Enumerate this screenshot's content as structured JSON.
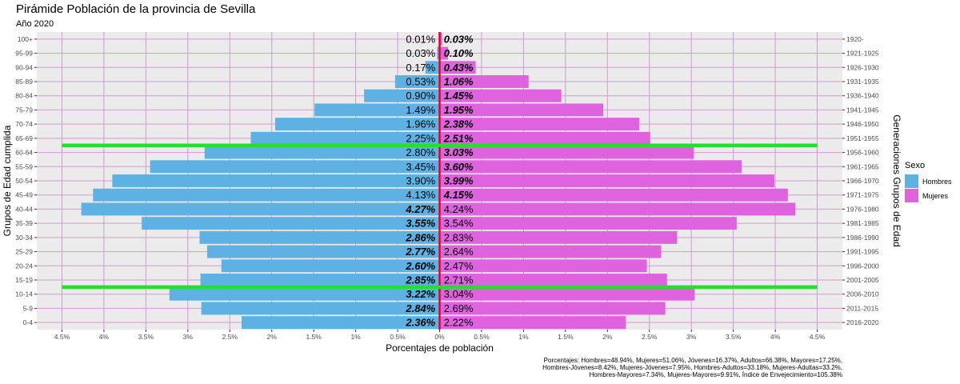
{
  "chart_data": {
    "type": "bar",
    "orientation": "horizontal",
    "title": "Pirámide Población de la provincia de Sevilla",
    "subtitle": "Año 2020",
    "xlabel": "Porcentajes de población",
    "ylabel": "Grupos de Edad cumplida",
    "ylabel_right": "Generaciones Grupos de Edad",
    "xlim": [
      -4.8,
      4.8
    ],
    "x_ticks": [
      -4.5,
      -4,
      -3.5,
      -3,
      -2.5,
      -2,
      -1.5,
      -1,
      -0.5,
      0,
      0.5,
      1,
      1.5,
      2,
      2.5,
      3,
      3.5,
      4,
      4.5
    ],
    "x_tick_labels": [
      "4.5%",
      "4%",
      "3.5%",
      "3%",
      "2.5%",
      "2%",
      "1.5%",
      "1%",
      "0.5%",
      "0%",
      "0.5%",
      "1%",
      "1.5%",
      "2%",
      "2.5%",
      "3%",
      "3.5%",
      "4%",
      "4.5%"
    ],
    "categories": [
      "0-4",
      "5-9",
      "10-14",
      "15-19",
      "20-24",
      "25-29",
      "30-34",
      "35-39",
      "40-44",
      "45-49",
      "50-54",
      "55-59",
      "60-64",
      "65-69",
      "70-74",
      "75-79",
      "80-84",
      "85-89",
      "90-94",
      "95-99",
      "100+"
    ],
    "generations": [
      "2016-2020",
      "2011-2015",
      "2006-2010",
      "2001-2005",
      "1996-2000",
      "1991-1995",
      "1986-1990",
      "1981-1985",
      "1976-1980",
      "1971-1975",
      "1966-1970",
      "1961-1965",
      "1956-1960",
      "1951-1955",
      "1946-1950",
      "1941-1945",
      "1936-1940",
      "1931-1935",
      "1926-1930",
      "1921-1925",
      "1920-"
    ],
    "series": [
      {
        "name": "Hombres",
        "color": "#5DB2E3",
        "values": [
          2.36,
          2.84,
          3.22,
          2.85,
          2.6,
          2.77,
          2.86,
          3.55,
          4.27,
          4.13,
          3.9,
          3.45,
          2.8,
          2.25,
          1.96,
          1.49,
          0.9,
          0.53,
          0.17,
          0.03,
          0.01
        ],
        "labels": [
          "2.36%",
          "2.84%",
          "3.22%",
          "2.85%",
          "2.60%",
          "2.77%",
          "2.86%",
          "3.55%",
          "4.27%",
          "4.13%",
          "3.90%",
          "3.45%",
          "2.80%",
          "2.25%",
          "1.96%",
          "1.49%",
          "0.90%",
          "0.53%",
          "0.17%",
          "0.03%",
          "0.01%"
        ],
        "bold": [
          true,
          true,
          true,
          true,
          true,
          true,
          true,
          true,
          true,
          false,
          false,
          false,
          false,
          false,
          false,
          false,
          false,
          false,
          false,
          false,
          false
        ]
      },
      {
        "name": "Mujeres",
        "color": "#DF62DE",
        "values": [
          2.22,
          2.69,
          3.04,
          2.71,
          2.47,
          2.64,
          2.83,
          3.54,
          4.24,
          4.15,
          3.99,
          3.6,
          3.03,
          2.51,
          2.38,
          1.95,
          1.45,
          1.06,
          0.43,
          0.1,
          0.03
        ],
        "labels": [
          "2.22%",
          "2.69%",
          "3.04%",
          "2.71%",
          "2.47%",
          "2.64%",
          "2.83%",
          "3.54%",
          "4.24%",
          "4.15%",
          "3.99%",
          "3.60%",
          "3.03%",
          "2.51%",
          "2.38%",
          "1.95%",
          "1.45%",
          "1.06%",
          "0.43%",
          "0.10%",
          "0.03%"
        ],
        "bold": [
          false,
          false,
          false,
          false,
          false,
          false,
          false,
          false,
          false,
          true,
          true,
          true,
          true,
          true,
          true,
          true,
          true,
          true,
          true,
          true,
          true
        ]
      }
    ],
    "reference_lines": [
      {
        "between": [
          "15-19",
          "10-14"
        ],
        "color": "#22E02C"
      },
      {
        "between": [
          "65-69",
          "60-64"
        ],
        "color": "#22E02C"
      }
    ],
    "center_line_color": "#E8002A",
    "legend": {
      "title": "Sexo",
      "placement": "right",
      "items": [
        {
          "label": "Hombres",
          "color": "#5DB2E3"
        },
        {
          "label": "Mujeres",
          "color": "#DF62DE"
        }
      ]
    },
    "grid": true,
    "caption": [
      "Porcentajes: Hombres=48.94%, Mujeres=51.06%, Jóvenes=16.37%, Adultos=66.38%, Mayores=17.25%,",
      "Hombres-Jóvenes=8.42%, Mujeres-Jóvenes=7.95%, Hombres-Adultos=33.18%, Mujeres-Adultas=33.2%,",
      "Hombres-Mayores=7.34%, Mujeres-Mayores=9.91%, Índice de Envejecimiento=105.38%"
    ]
  }
}
